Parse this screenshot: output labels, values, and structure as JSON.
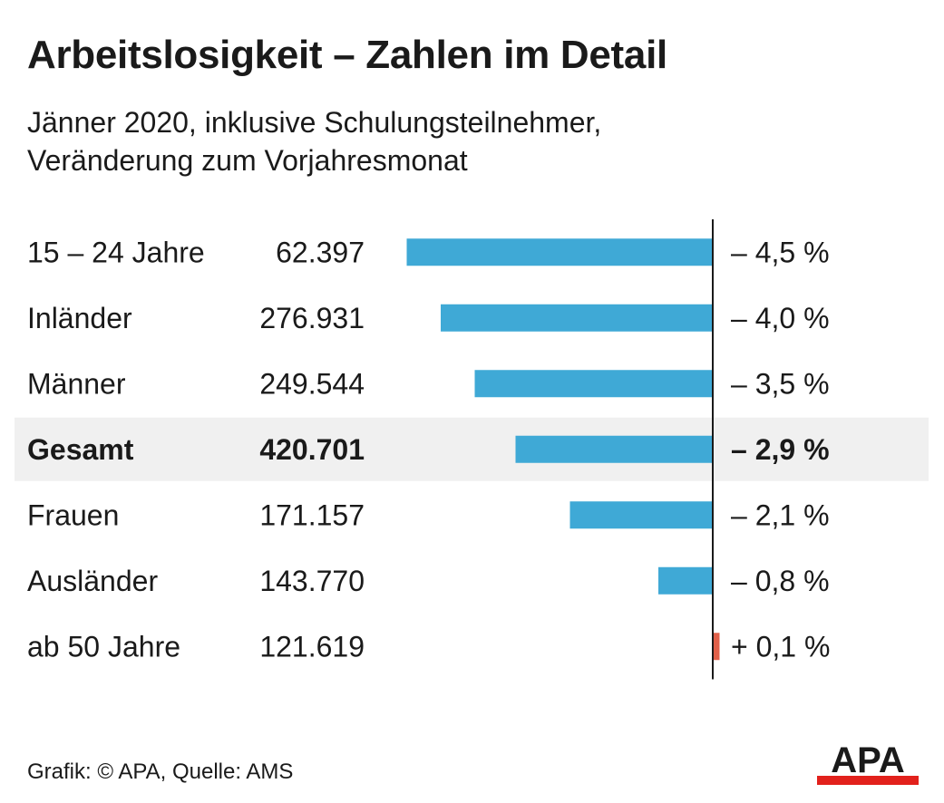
{
  "header": {
    "title": "Arbeitslosigkeit – Zahlen im Detail",
    "subtitle_line1": "Jänner 2020, inklusive Schulungsteilnehmer,",
    "subtitle_line2": "Veränderung zum Vorjahresmonat"
  },
  "chart_data": {
    "type": "bar",
    "orientation": "horizontal",
    "categories": [
      "15 – 24 Jahre",
      "Inländer",
      "Männer",
      "Gesamt",
      "Frauen",
      "Ausländer",
      "ab 50 Jahre"
    ],
    "counts": [
      "62.397",
      "276.931",
      "249.544",
      "420.701",
      "171.157",
      "143.770",
      "121.619"
    ],
    "values": [
      -4.5,
      -4.0,
      -3.5,
      -2.9,
      -2.1,
      -0.8,
      0.1
    ],
    "value_labels": [
      "– 4,5 %",
      "– 4,0 %",
      "– 3,5 %",
      "– 2,9 %",
      "– 2,1 %",
      "– 0,8 %",
      "+ 0,1 %"
    ],
    "highlight_index": 3,
    "colors": {
      "negative": "#3fa9d6",
      "positive": "#e0604a",
      "highlight_row": "#f0f0f0",
      "axis": "#1a1a1a"
    }
  },
  "footer": {
    "credit": "Grafik: © APA, Quelle: AMS",
    "logo_text": "APA",
    "logo_colors": {
      "text": "#1a1a1a",
      "stripe": "#e2211c"
    }
  }
}
